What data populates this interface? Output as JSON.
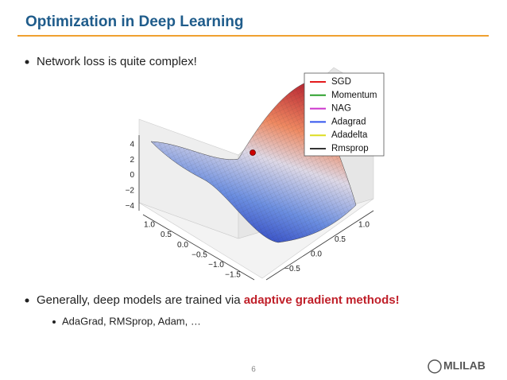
{
  "title": "Optimization in Deep Learning",
  "bullets": [
    {
      "text": "Network loss is quite complex!"
    },
    {
      "text": "Generally, deep models are trained via ",
      "highlight": "adaptive gradient methods!",
      "sub": [
        "AdaGrad, RMSprop, Adam, …"
      ]
    }
  ],
  "figure": {
    "z_ticks": [
      "4",
      "2",
      "0",
      "−2",
      "−4"
    ],
    "x_ticks": [
      "1.0",
      "0.5",
      "0.0",
      "−0.5",
      "−1.0",
      "−1.5"
    ],
    "y_ticks": [
      "1.0",
      "0.5",
      "0.0",
      "−0.5"
    ],
    "legend": [
      {
        "name": "SGD",
        "color": "#e41a1c"
      },
      {
        "name": "Momentum",
        "color": "#2ca02c"
      },
      {
        "name": "NAG",
        "color": "#cc33cc"
      },
      {
        "name": "Adagrad",
        "color": "#3355ee"
      },
      {
        "name": "Adadelta",
        "color": "#dddd22"
      },
      {
        "name": "Rmsprop",
        "color": "#333333"
      }
    ]
  },
  "page_number": "6",
  "logo": "MLILAB"
}
